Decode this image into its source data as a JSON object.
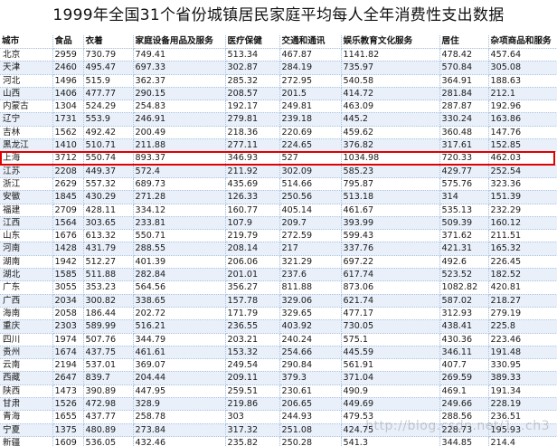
{
  "title": "1999年全国31个省份城镇居民家庭平均每人全年消费性支出数据",
  "headers": [
    "城市",
    "食品",
    "衣着",
    "家庭设备用品及服务",
    "医疗保健",
    "交通和通讯",
    "娱乐教育文化服务",
    "居住",
    "杂项商品和服务"
  ],
  "rows": [
    [
      "北京",
      "2959",
      "730.79",
      "749.41",
      "513.34",
      "467.87",
      "1141.82",
      "478.42",
      "457.64"
    ],
    [
      "天津",
      "2460",
      "495.47",
      "697.33",
      "302.87",
      "284.19",
      "735.97",
      "570.84",
      "305.08"
    ],
    [
      "河北",
      "1496",
      "515.9",
      "362.37",
      "285.32",
      "272.95",
      "540.58",
      "364.91",
      "188.63"
    ],
    [
      "山西",
      "1406",
      "477.77",
      "290.15",
      "208.57",
      "201.5",
      "414.72",
      "281.84",
      "212.1"
    ],
    [
      "内蒙古",
      "1304",
      "524.29",
      "254.83",
      "192.17",
      "249.81",
      "463.09",
      "287.87",
      "192.96"
    ],
    [
      "辽宁",
      "1731",
      "553.9",
      "246.91",
      "279.81",
      "239.18",
      "445.2",
      "330.24",
      "163.86"
    ],
    [
      "吉林",
      "1562",
      "492.42",
      "200.49",
      "218.36",
      "220.69",
      "459.62",
      "360.48",
      "147.76"
    ],
    [
      "黑龙江",
      "1410",
      "510.71",
      "211.88",
      "277.11",
      "224.65",
      "376.82",
      "317.61",
      "152.85"
    ],
    [
      "上海",
      "3712",
      "550.74",
      "893.37",
      "346.93",
      "527",
      "1034.98",
      "720.33",
      "462.03"
    ],
    [
      "江苏",
      "2208",
      "449.37",
      "572.4",
      "211.92",
      "302.09",
      "585.23",
      "429.77",
      "252.54"
    ],
    [
      "浙江",
      "2629",
      "557.32",
      "689.73",
      "435.69",
      "514.66",
      "795.87",
      "575.76",
      "323.36"
    ],
    [
      "安徽",
      "1845",
      "430.29",
      "271.28",
      "126.33",
      "250.56",
      "513.18",
      "314",
      "151.39"
    ],
    [
      "福建",
      "2709",
      "428.11",
      "334.12",
      "160.77",
      "405.14",
      "461.67",
      "535.13",
      "232.29"
    ],
    [
      "江西",
      "1564",
      "303.65",
      "233.81",
      "107.9",
      "209.7",
      "393.99",
      "509.39",
      "160.12"
    ],
    [
      "山东",
      "1676",
      "613.32",
      "550.71",
      "219.79",
      "272.59",
      "599.43",
      "371.62",
      "211.51"
    ],
    [
      "河南",
      "1428",
      "431.79",
      "288.55",
      "208.14",
      "217",
      "337.76",
      "421.31",
      "165.32"
    ],
    [
      "湖南",
      "1942",
      "512.27",
      "401.39",
      "206.06",
      "321.29",
      "697.22",
      "492.6",
      "226.45"
    ],
    [
      "湖北",
      "1585",
      "511.88",
      "282.84",
      "201.01",
      "237.6",
      "617.74",
      "523.52",
      "182.52"
    ],
    [
      "广东",
      "3055",
      "353.23",
      "564.56",
      "356.27",
      "811.88",
      "873.06",
      "1082.82",
      "420.81"
    ],
    [
      "广西",
      "2034",
      "300.82",
      "338.65",
      "157.78",
      "329.06",
      "621.74",
      "587.02",
      "218.27"
    ],
    [
      "海南",
      "2058",
      "186.44",
      "202.72",
      "171.79",
      "329.65",
      "477.17",
      "312.93",
      "279.19"
    ],
    [
      "重庆",
      "2303",
      "589.99",
      "516.21",
      "236.55",
      "403.92",
      "730.05",
      "438.41",
      "225.8"
    ],
    [
      "四川",
      "1974",
      "507.76",
      "344.79",
      "203.21",
      "240.24",
      "575.1",
      "430.36",
      "223.46"
    ],
    [
      "贵州",
      "1674",
      "437.75",
      "461.61",
      "153.32",
      "254.66",
      "445.59",
      "346.11",
      "191.48"
    ],
    [
      "云南",
      "2194",
      "537.01",
      "369.07",
      "249.54",
      "290.84",
      "561.91",
      "407.7",
      "330.95"
    ],
    [
      "西藏",
      "2647",
      "839.7",
      "204.44",
      "209.11",
      "379.3",
      "371.04",
      "269.59",
      "389.33"
    ],
    [
      "陕西",
      "1473",
      "390.89",
      "447.95",
      "259.51",
      "230.61",
      "490.9",
      "469.1",
      "191.34"
    ],
    [
      "甘肃",
      "1526",
      "472.98",
      "328.9",
      "219.86",
      "206.65",
      "449.69",
      "249.66",
      "228.19"
    ],
    [
      "青海",
      "1655",
      "437.77",
      "258.78",
      "303",
      "244.93",
      "479.53",
      "288.56",
      "236.51"
    ],
    [
      "宁夏",
      "1375",
      "480.89",
      "273.84",
      "317.32",
      "251.08",
      "424.75",
      "228.73",
      "195.93"
    ],
    [
      "新疆",
      "1609",
      "536.05",
      "432.46",
      "235.82",
      "250.28",
      "541.3",
      "344.85",
      "214.4"
    ]
  ],
  "highlighted_row": "上海",
  "watermark": "http://blog.csdn.net/1…ch3"
}
